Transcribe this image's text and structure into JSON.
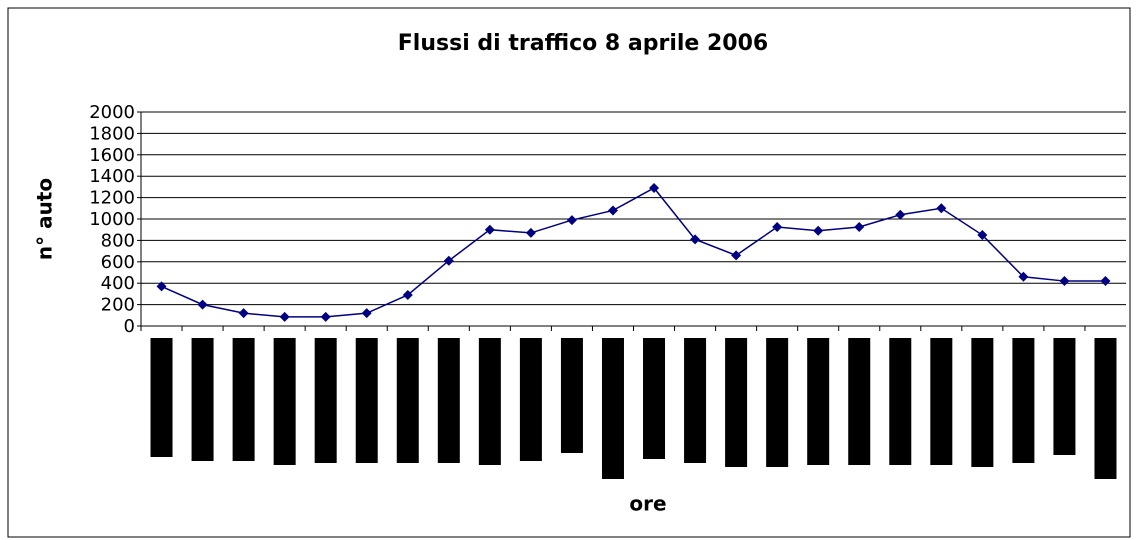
{
  "chart_data": {
    "type": "line",
    "title": "Flussi di traffico 8 aprile 2006",
    "x_label": "ore",
    "y_label": "n° auto",
    "categories": [
      null,
      null,
      null,
      null,
      null,
      null,
      null,
      null,
      null,
      null,
      null,
      null,
      null,
      null,
      null,
      null,
      null,
      null,
      null,
      null,
      null,
      null,
      null,
      null
    ],
    "series": [
      {
        "name": null,
        "color": "#000080",
        "values": [
          370,
          200,
          120,
          85,
          85,
          120,
          290,
          610,
          900,
          870,
          990,
          1080,
          1290,
          810,
          660,
          925,
          890,
          925,
          1040,
          1100,
          850,
          460,
          420,
          420
        ]
      }
    ],
    "ylim": [
      0,
      2000
    ],
    "yticks": [
      0,
      200,
      400,
      600,
      800,
      1000,
      1200,
      1400,
      1600,
      1800,
      2000
    ],
    "grid": true
  }
}
